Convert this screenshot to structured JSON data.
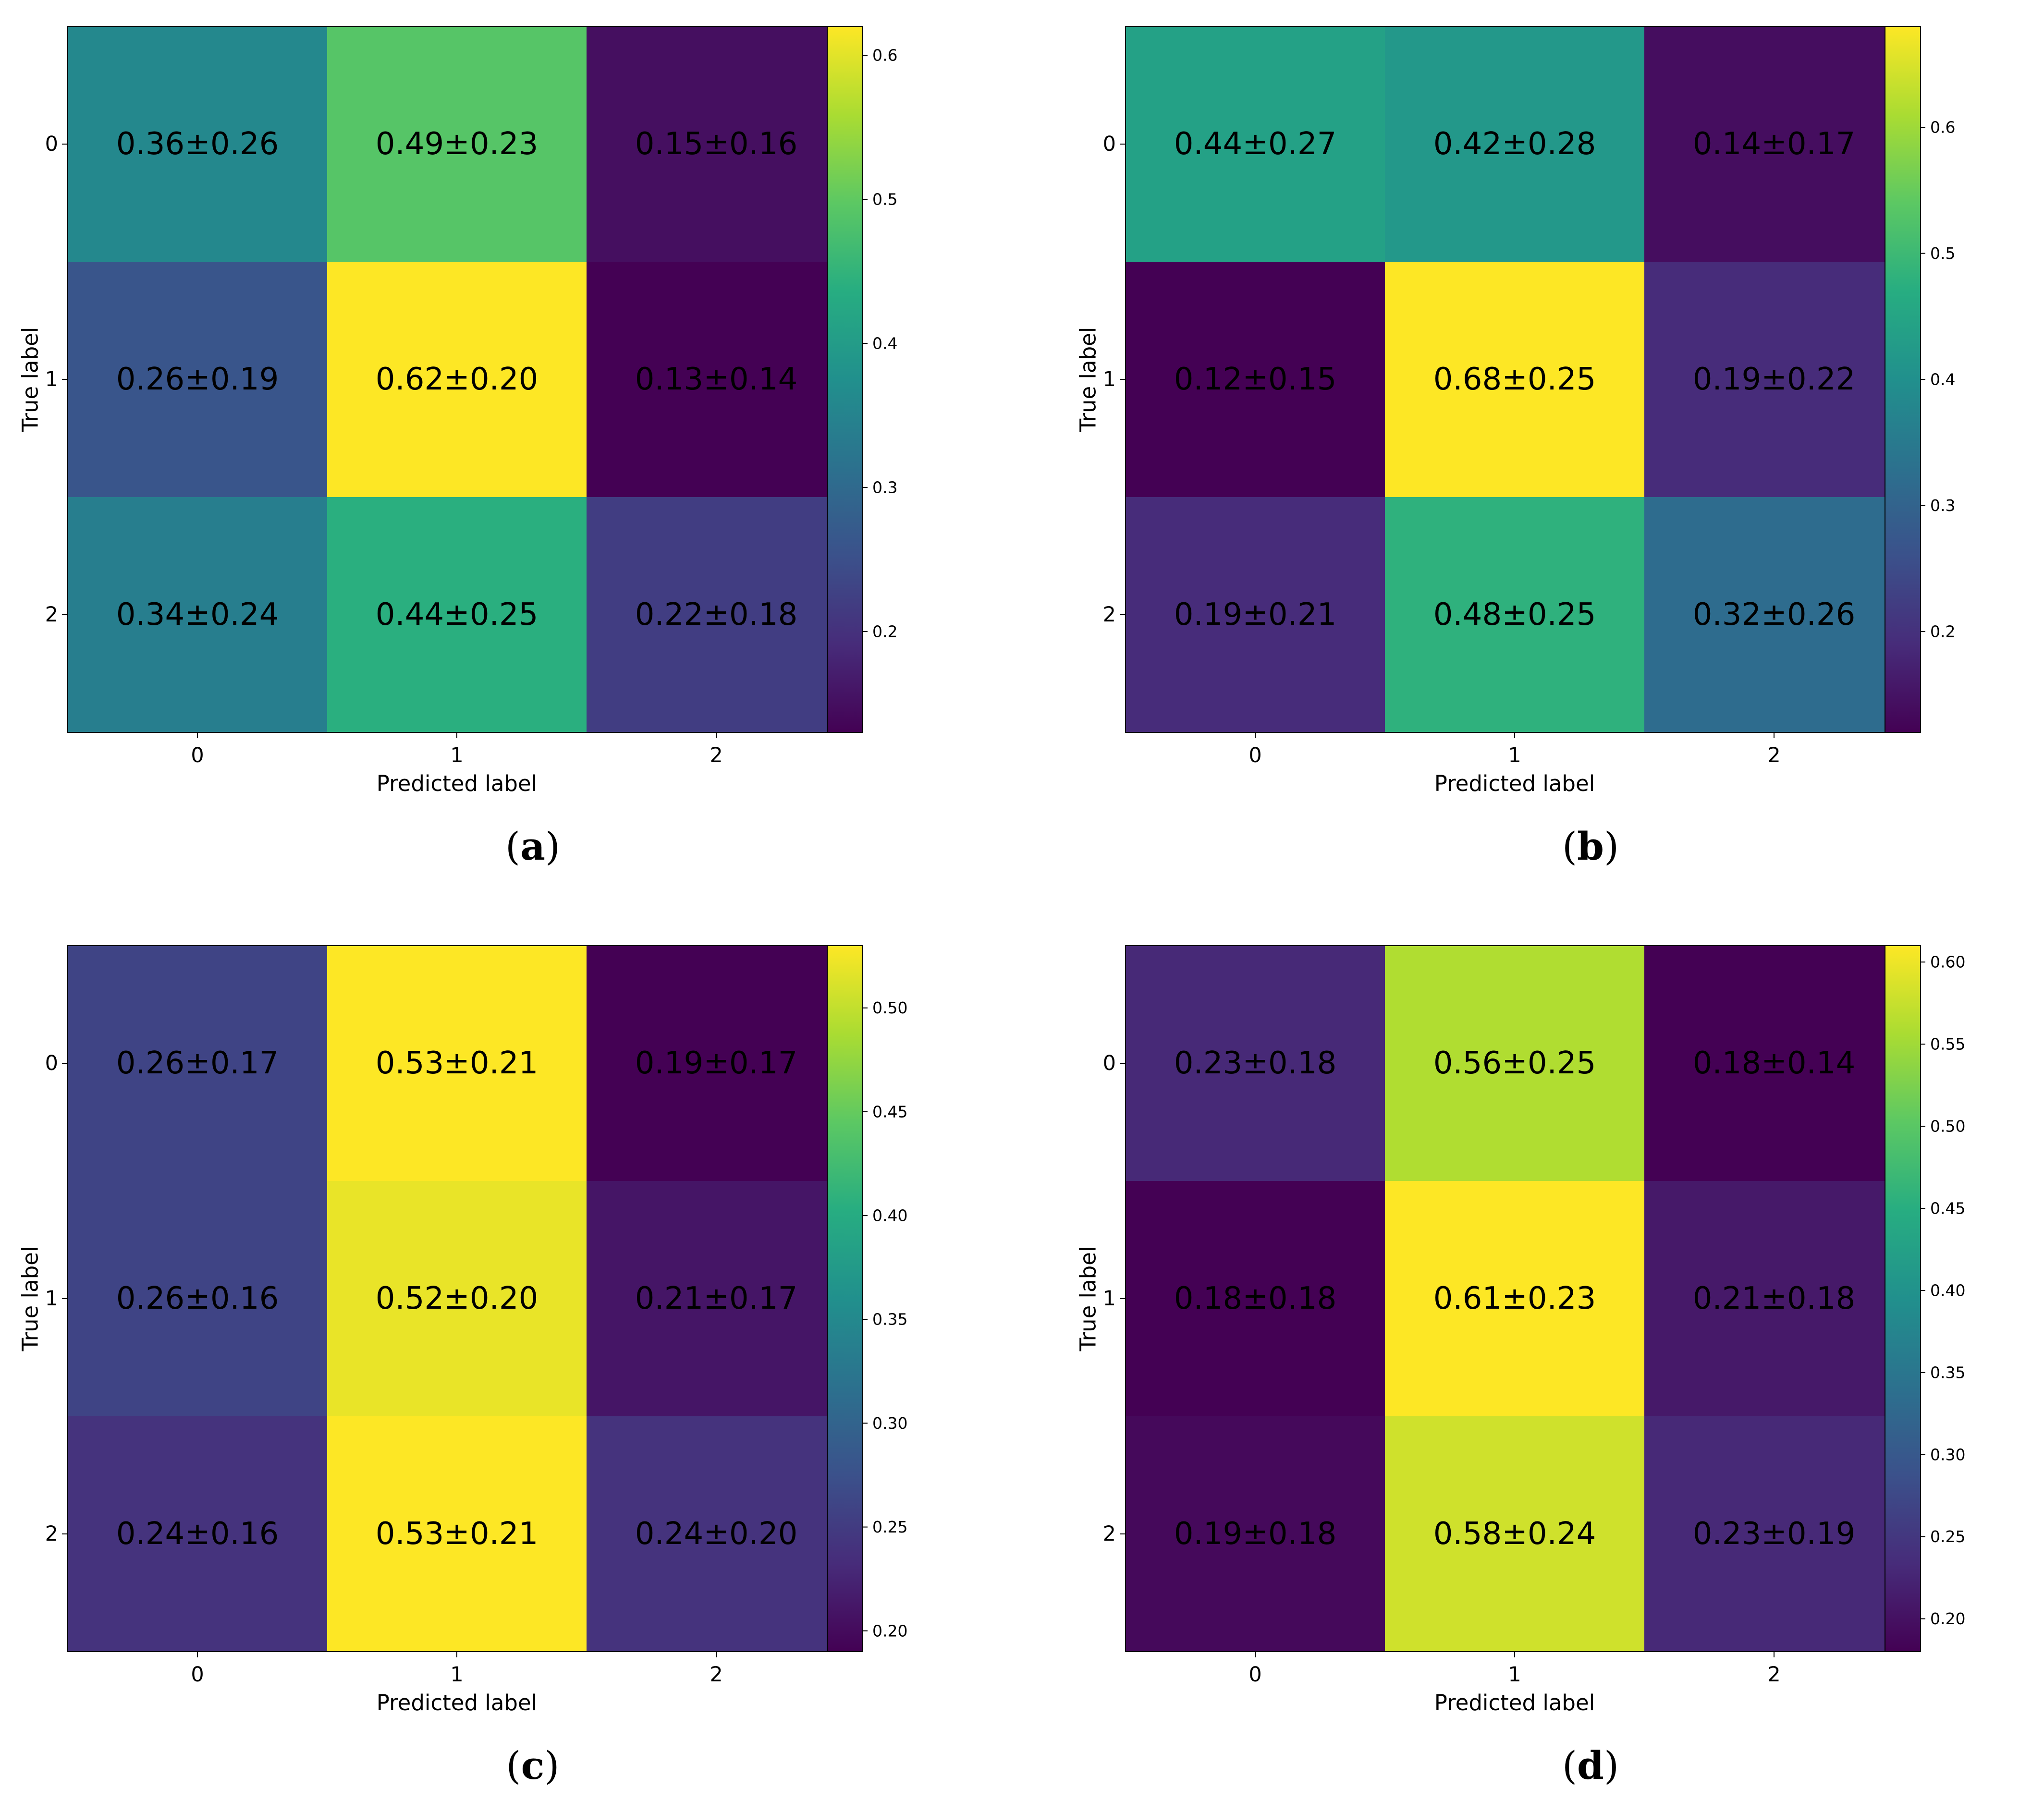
{
  "figure": {
    "colormap": "viridis",
    "cell_text_color": "#000000"
  },
  "chart_data": [
    {
      "type": "heatmap",
      "panel": "(a)",
      "caption_letter": "a",
      "xlabel": "Predicted label",
      "ylabel": "True label",
      "x_ticks": [
        "0",
        "1",
        "2"
      ],
      "y_ticks": [
        "0",
        "1",
        "2"
      ],
      "means": [
        [
          0.36,
          0.49,
          0.15
        ],
        [
          0.26,
          0.62,
          0.13
        ],
        [
          0.34,
          0.44,
          0.22
        ]
      ],
      "labels": [
        [
          "0.36±0.26",
          "0.49±0.23",
          "0.15±0.16"
        ],
        [
          "0.26±0.19",
          "0.62±0.20",
          "0.13±0.14"
        ],
        [
          "0.34±0.24",
          "0.44±0.25",
          "0.22±0.18"
        ]
      ],
      "colorbar": {
        "vmin": 0.13,
        "vmax": 0.62,
        "ticks": [
          0.2,
          0.3,
          0.4,
          0.5,
          0.6
        ],
        "tick_labels": [
          "0.2",
          "0.3",
          "0.4",
          "0.5",
          "0.6"
        ]
      }
    },
    {
      "type": "heatmap",
      "panel": "(b)",
      "caption_letter": "b",
      "xlabel": "Predicted label",
      "ylabel": "True label",
      "x_ticks": [
        "0",
        "1",
        "2"
      ],
      "y_ticks": [
        "0",
        "1",
        "2"
      ],
      "means": [
        [
          0.44,
          0.42,
          0.14
        ],
        [
          0.12,
          0.68,
          0.19
        ],
        [
          0.19,
          0.48,
          0.32
        ]
      ],
      "labels": [
        [
          "0.44±0.27",
          "0.42±0.28",
          "0.14±0.17"
        ],
        [
          "0.12±0.15",
          "0.68±0.25",
          "0.19±0.22"
        ],
        [
          "0.19±0.21",
          "0.48±0.25",
          "0.32±0.26"
        ]
      ],
      "colorbar": {
        "vmin": 0.12,
        "vmax": 0.68,
        "ticks": [
          0.2,
          0.3,
          0.4,
          0.5,
          0.6
        ],
        "tick_labels": [
          "0.2",
          "0.3",
          "0.4",
          "0.5",
          "0.6"
        ]
      }
    },
    {
      "type": "heatmap",
      "panel": "(c)",
      "caption_letter": "c",
      "xlabel": "Predicted label",
      "ylabel": "True label",
      "x_ticks": [
        "0",
        "1",
        "2"
      ],
      "y_ticks": [
        "0",
        "1",
        "2"
      ],
      "means": [
        [
          0.26,
          0.53,
          0.19
        ],
        [
          0.26,
          0.52,
          0.21
        ],
        [
          0.24,
          0.53,
          0.24
        ]
      ],
      "labels": [
        [
          "0.26±0.17",
          "0.53±0.21",
          "0.19±0.17"
        ],
        [
          "0.26±0.16",
          "0.52±0.20",
          "0.21±0.17"
        ],
        [
          "0.24±0.16",
          "0.53±0.21",
          "0.24±0.20"
        ]
      ],
      "colorbar": {
        "vmin": 0.19,
        "vmax": 0.53,
        "ticks": [
          0.2,
          0.25,
          0.3,
          0.35,
          0.4,
          0.45,
          0.5
        ],
        "tick_labels": [
          "0.20",
          "0.25",
          "0.30",
          "0.35",
          "0.40",
          "0.45",
          "0.50"
        ]
      }
    },
    {
      "type": "heatmap",
      "panel": "(d)",
      "caption_letter": "d",
      "xlabel": "Predicted label",
      "ylabel": "True label",
      "x_ticks": [
        "0",
        "1",
        "2"
      ],
      "y_ticks": [
        "0",
        "1",
        "2"
      ],
      "means": [
        [
          0.23,
          0.56,
          0.18
        ],
        [
          0.18,
          0.61,
          0.21
        ],
        [
          0.19,
          0.58,
          0.23
        ]
      ],
      "labels": [
        [
          "0.23±0.18",
          "0.56±0.25",
          "0.18±0.14"
        ],
        [
          "0.18±0.18",
          "0.61±0.23",
          "0.21±0.18"
        ],
        [
          "0.19±0.18",
          "0.58±0.24",
          "0.23±0.19"
        ]
      ],
      "colorbar": {
        "vmin": 0.18,
        "vmax": 0.61,
        "ticks": [
          0.2,
          0.25,
          0.3,
          0.35,
          0.4,
          0.45,
          0.5,
          0.55,
          0.6
        ],
        "tick_labels": [
          "0.20",
          "0.25",
          "0.30",
          "0.35",
          "0.40",
          "0.45",
          "0.50",
          "0.55",
          "0.60"
        ]
      }
    }
  ]
}
